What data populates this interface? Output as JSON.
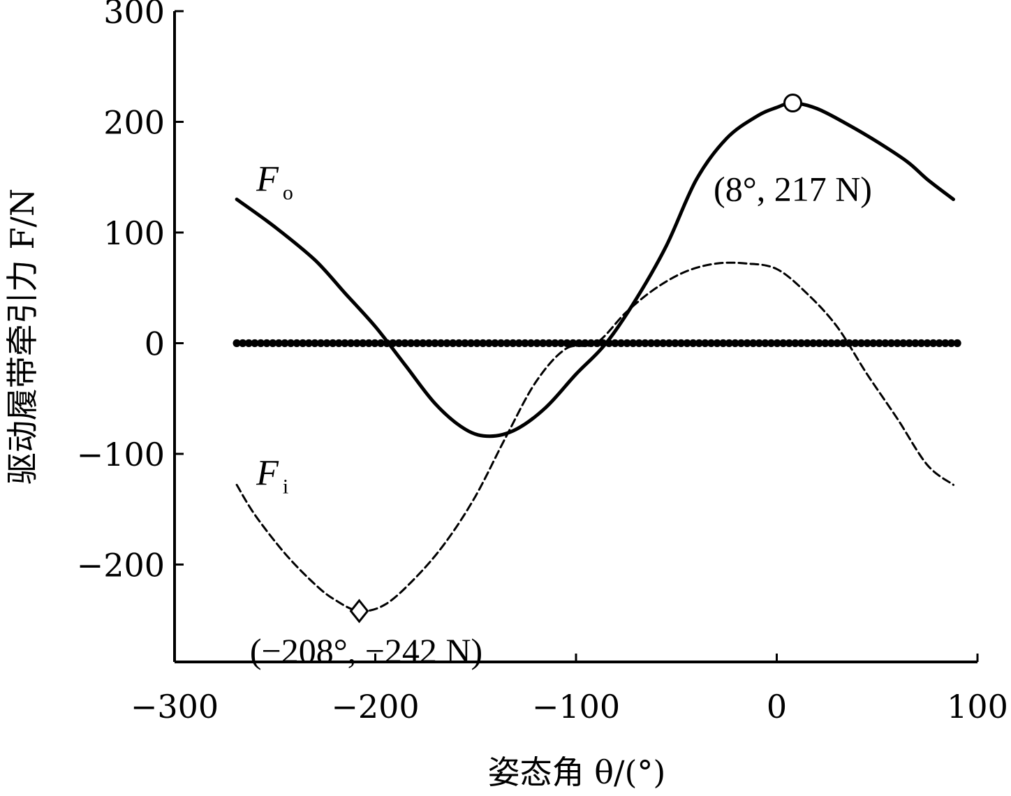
{
  "chart_data": {
    "type": "line",
    "xlabel": "姿态角 θ/(°)",
    "ylabel": "驱动履带牵引力 F/N",
    "xlim": [
      -300,
      100
    ],
    "ylim": [
      -288,
      300
    ],
    "x_ticks": [
      -300,
      -200,
      -100,
      0,
      100
    ],
    "y_ticks": [
      -200,
      -100,
      0,
      100,
      200,
      300
    ],
    "x_tick_labels": [
      "−300",
      "−200",
      "−100",
      "0",
      "100"
    ],
    "y_tick_labels": [
      "−200",
      "−100",
      "0",
      "100",
      "200",
      "300"
    ],
    "grid": false,
    "series": [
      {
        "name": "F",
        "subscript": "o",
        "style": "solid",
        "color": "#000000",
        "x": [
          -269,
          -250,
          -230,
          -215,
          -200,
          -185,
          -170,
          -155,
          -143,
          -130,
          -115,
          -100,
          -85,
          -70,
          -55,
          -40,
          -25,
          -10,
          0,
          8,
          20,
          35,
          50,
          65,
          75,
          88
        ],
        "y": [
          130,
          105,
          75,
          45,
          15,
          -20,
          -55,
          -78,
          -84,
          -78,
          -58,
          -28,
          0,
          40,
          88,
          148,
          185,
          205,
          213,
          217,
          212,
          198,
          182,
          164,
          148,
          130
        ]
      },
      {
        "name": "F",
        "subscript": "i",
        "style": "dashed",
        "color": "#000000",
        "x": [
          -269,
          -260,
          -245,
          -230,
          -220,
          -208,
          -195,
          -180,
          -165,
          -150,
          -135,
          -120,
          -105,
          -90,
          -75,
          -60,
          -45,
          -30,
          -15,
          0,
          15,
          30,
          45,
          60,
          75,
          88
        ],
        "y": [
          -128,
          -155,
          -190,
          -218,
          -232,
          -242,
          -236,
          -212,
          -180,
          -138,
          -85,
          -35,
          -5,
          0,
          28,
          50,
          65,
          72,
          72,
          67,
          45,
          15,
          -28,
          -68,
          -110,
          -128
        ]
      },
      {
        "name": "",
        "style": "dotted",
        "color": "#000000",
        "x": [
          -269,
          90
        ],
        "y": [
          0,
          0
        ]
      }
    ],
    "markers": [
      {
        "shape": "circle",
        "x": 8,
        "y": 217
      },
      {
        "shape": "diamond",
        "x": -208,
        "y": -242
      }
    ],
    "annotations": [
      {
        "text": "(8°, 217 N)",
        "x": 8,
        "y": 217
      },
      {
        "text": "(−208°, −242 N)",
        "x": -208,
        "y": -242
      }
    ]
  }
}
